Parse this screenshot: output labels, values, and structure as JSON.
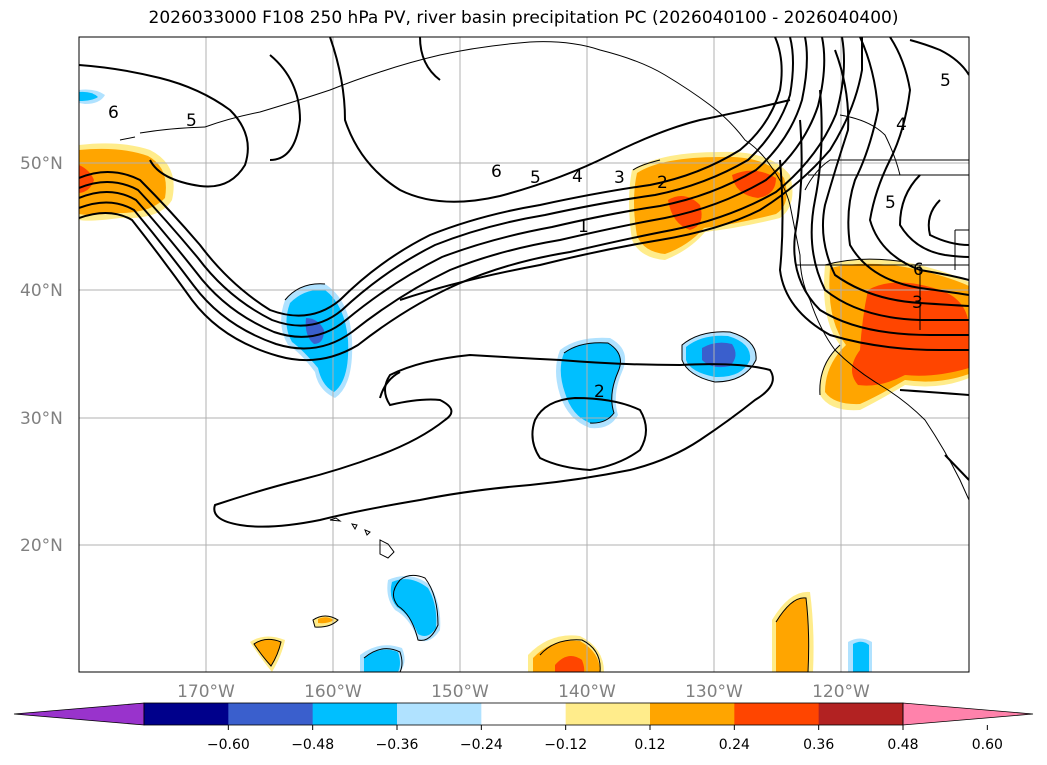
{
  "title": "2026033000 F108 250 hPa PV, river basin precipitation PC (2026040100 - 2026040400)",
  "map": {
    "lat_labels": [
      "50°N",
      "40°N",
      "30°N",
      "20°N"
    ],
    "lon_labels": [
      "170°W",
      "160°W",
      "150°W",
      "140°W",
      "130°W",
      "120°W"
    ],
    "contour_labels": [
      "6",
      "5",
      "6",
      "5",
      "4",
      "3",
      "2",
      "1",
      "2",
      "4",
      "5",
      "6",
      "3",
      "5"
    ]
  },
  "colorbar": {
    "colors": [
      "#9933cc",
      "#00008b",
      "#3a5fcd",
      "#00bfff",
      "#b0e2ff",
      "#ffffff",
      "#ffec8b",
      "#ffa500",
      "#ff4500",
      "#b22222",
      "#ff82ab"
    ],
    "tick_labels": [
      "−0.60",
      "−0.48",
      "−0.36",
      "−0.24",
      "−0.12",
      "0.12",
      "0.24",
      "0.36",
      "0.48",
      "0.60"
    ]
  }
}
